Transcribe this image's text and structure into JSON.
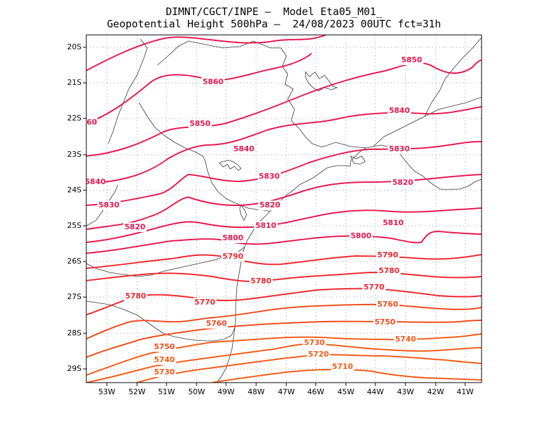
{
  "header": {
    "line1": "DIMNT/CGCT/INPE –  Model Eta05_M01_",
    "line2": "Geopotential Height 500hPa –  24/08/2023 00UTC fct=31h"
  },
  "axes": {
    "lat_labels": [
      "20S",
      "21S",
      "22S",
      "23S",
      "24S",
      "25S",
      "26S",
      "27S",
      "28S",
      "29S"
    ],
    "lon_labels": [
      "53W",
      "52W",
      "51W",
      "50W",
      "49W",
      "48W",
      "47W",
      "46W",
      "45W",
      "44W",
      "43W",
      "42W",
      "41W"
    ]
  },
  "contours": {
    "line_color_high": "#e8174f",
    "line_color_low": "#f45a16",
    "labels": [
      {
        "text": "5850"
      },
      {
        "text": "5860"
      },
      {
        "text": "5840"
      },
      {
        "text": "60"
      },
      {
        "text": "5850"
      },
      {
        "text": "5830"
      },
      {
        "text": "5840"
      },
      {
        "text": "5820"
      },
      {
        "text": "5840"
      },
      {
        "text": "5830"
      },
      {
        "text": "5830"
      },
      {
        "text": "5810"
      },
      {
        "text": "5820"
      },
      {
        "text": "5820"
      },
      {
        "text": "5810"
      },
      {
        "text": "5800"
      },
      {
        "text": "5800"
      },
      {
        "text": "5790"
      },
      {
        "text": "5790"
      },
      {
        "text": "5780"
      },
      {
        "text": "5780"
      },
      {
        "text": "5770"
      },
      {
        "text": "5780"
      },
      {
        "text": "5770"
      },
      {
        "text": "5760"
      },
      {
        "text": "5760"
      },
      {
        "text": "5750"
      },
      {
        "text": "5740"
      },
      {
        "text": "5730"
      },
      {
        "text": "5750"
      },
      {
        "text": "5720"
      },
      {
        "text": "5740"
      },
      {
        "text": "5710"
      },
      {
        "text": "5730"
      }
    ]
  }
}
